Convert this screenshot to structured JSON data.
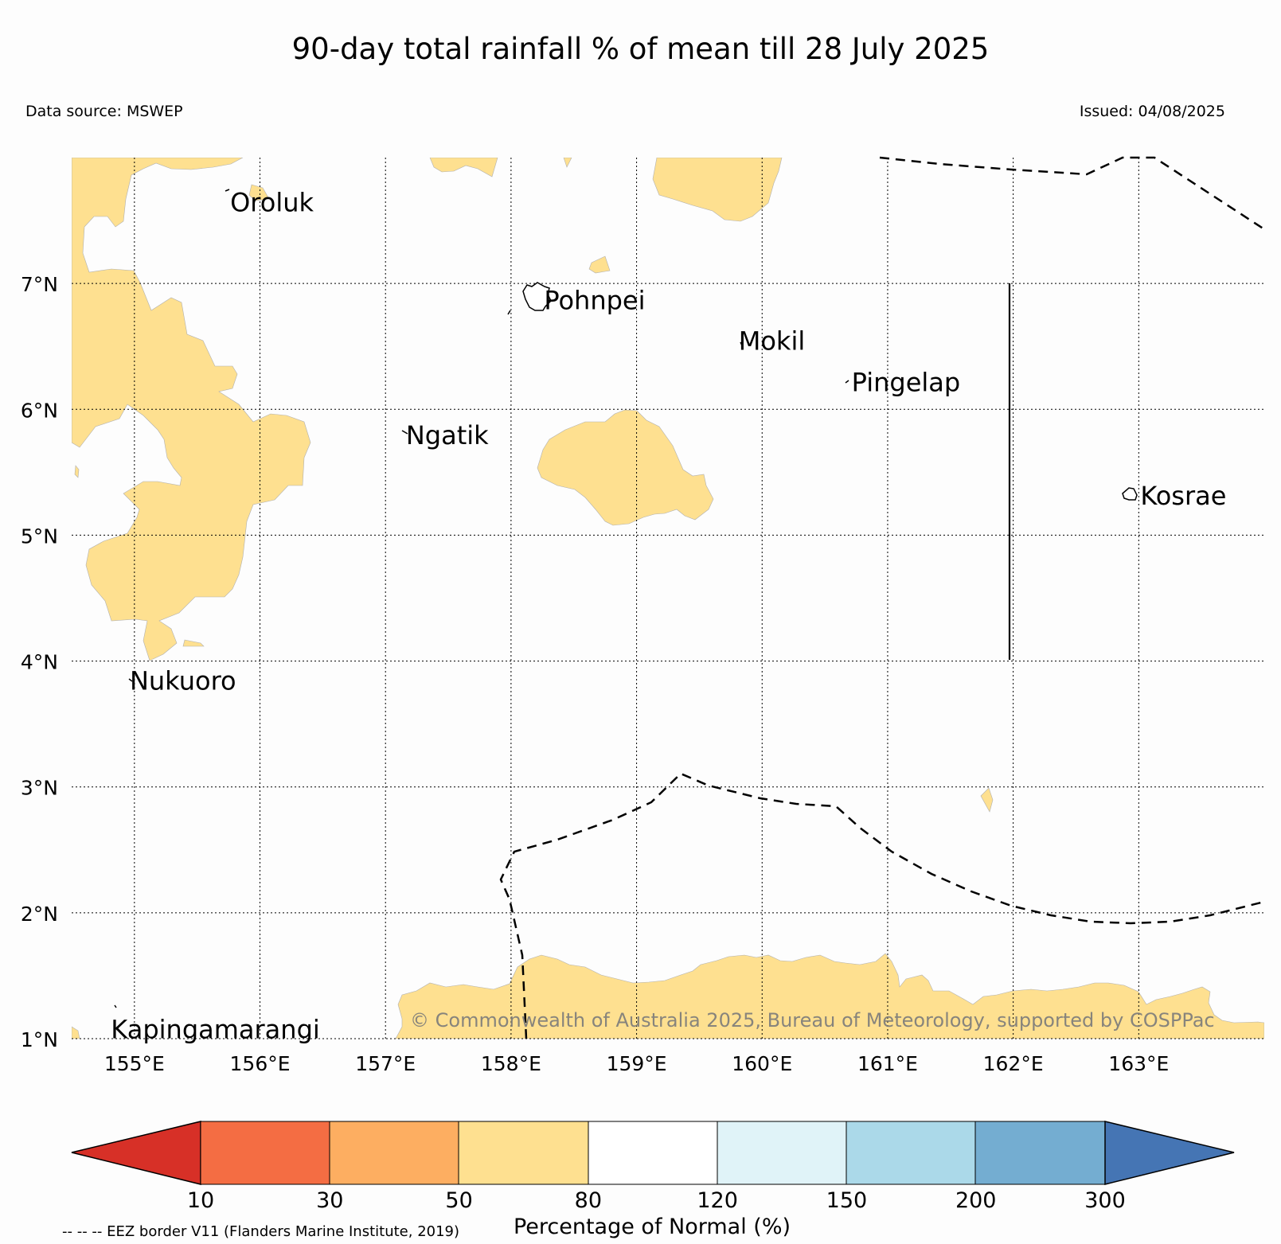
{
  "title": "90-day total rainfall % of mean till 28 July 2025",
  "data_source": "Data source: MSWEP",
  "issued": "Issued: 04/08/2025",
  "map": {
    "lon_range": [
      154.5,
      164.0
    ],
    "lat_range": [
      1.0,
      8.0
    ],
    "lon_ticks": [
      {
        "value": 155,
        "label": "155°E"
      },
      {
        "value": 156,
        "label": "156°E"
      },
      {
        "value": 157,
        "label": "157°E"
      },
      {
        "value": 158,
        "label": "158°E"
      },
      {
        "value": 159,
        "label": "159°E"
      },
      {
        "value": 160,
        "label": "160°E"
      },
      {
        "value": 161,
        "label": "161°E"
      },
      {
        "value": 162,
        "label": "162°E"
      },
      {
        "value": 163,
        "label": "163°E"
      }
    ],
    "lat_ticks": [
      {
        "value": 1,
        "label": "1°N"
      },
      {
        "value": 2,
        "label": "2°N"
      },
      {
        "value": 3,
        "label": "3°N"
      },
      {
        "value": 4,
        "label": "4°N"
      },
      {
        "value": 5,
        "label": "5°N"
      },
      {
        "value": 6,
        "label": "6°N"
      },
      {
        "value": 7,
        "label": "7°N"
      }
    ],
    "grid": true,
    "places": [
      {
        "name": "Oroluk",
        "lon": 155.75,
        "lat": 7.65
      },
      {
        "name": "Pohnpei",
        "lon": 158.25,
        "lat": 6.87
      },
      {
        "name": "Mokil",
        "lon": 159.8,
        "lat": 6.55
      },
      {
        "name": "Pingelap",
        "lon": 160.7,
        "lat": 6.22
      },
      {
        "name": "Ngatik",
        "lon": 157.15,
        "lat": 5.8
      },
      {
        "name": "Kosrae",
        "lon": 163.0,
        "lat": 5.32
      },
      {
        "name": "Nukuoro",
        "lon": 154.95,
        "lat": 3.85
      },
      {
        "name": "Kapingamarangi",
        "lon": 154.8,
        "lat": 1.08
      }
    ],
    "copyright": "© Commonwealth of Australia 2025, Bureau of Meteorology, supported by COSPPac"
  },
  "legend": {
    "title": "Percentage of Normal (%)",
    "boundaries": [
      "10",
      "30",
      "50",
      "80",
      "120",
      "150",
      "200",
      "300"
    ],
    "colors": [
      "#d73027",
      "#f46d43",
      "#fdae61",
      "#fee090",
      "#ffffff",
      "#e0f3f8",
      "#abd9e9",
      "#74add1",
      "#4575b4"
    ],
    "eez_note": "-- -- -- EEZ border V11 (Flanders Marine Institute, 2019)"
  },
  "colors": {
    "rain_50_80": "#fee090",
    "background": "#fdfdfd"
  }
}
